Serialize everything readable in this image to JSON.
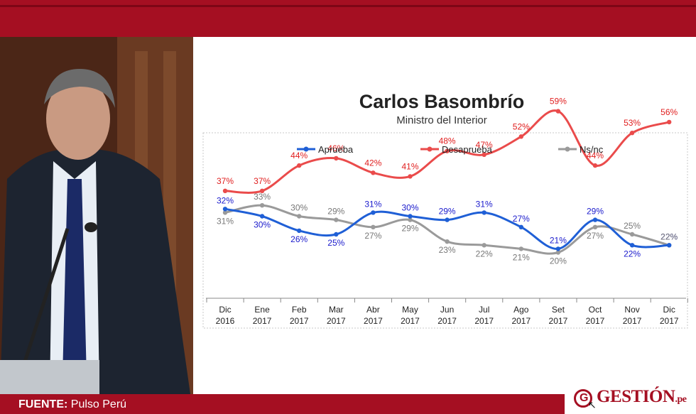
{
  "header": {
    "color": "#a50f22"
  },
  "photo": {
    "icon": "person-at-podium-photo"
  },
  "title": "Carlos  Basombrío",
  "subtitle": "Ministro del Interior",
  "footer": {
    "source_label": "FUENTE:",
    "source_value": "Pulso Perú"
  },
  "logo": {
    "text": "GESTIÓN",
    "tld": ".pe",
    "mark": "G"
  },
  "chart_data": {
    "type": "line",
    "categories": [
      "Dic 2016",
      "Ene 2017",
      "Feb 2017",
      "Mar 2017",
      "Abr 2017",
      "May 2017",
      "Jun 2017",
      "Jul 2017",
      "Ago 2017",
      "Set 2017",
      "Oct 2017",
      "Nov 2017",
      "Dic 2017"
    ],
    "category_lines": [
      [
        "Dic",
        "2016"
      ],
      [
        "Ene",
        "2017"
      ],
      [
        "Feb",
        "2017"
      ],
      [
        "Mar",
        "2017"
      ],
      [
        "Abr",
        "2017"
      ],
      [
        "May",
        "2017"
      ],
      [
        "Jun",
        "2017"
      ],
      [
        "Jul",
        "2017"
      ],
      [
        "Ago",
        "2017"
      ],
      [
        "Set",
        "2017"
      ],
      [
        "Oct",
        "2017"
      ],
      [
        "Nov",
        "2017"
      ],
      [
        "Dic",
        "2017"
      ]
    ],
    "series": [
      {
        "name": "Aprueba",
        "color": "#1f5fd6",
        "label_color": "#1a1acc",
        "values": [
          32,
          30,
          26,
          25,
          31,
          30,
          29,
          31,
          27,
          21,
          29,
          22,
          22
        ]
      },
      {
        "name": "Desaprueba",
        "color": "#ea4b4b",
        "label_color": "#e01e1e",
        "values": [
          37,
          37,
          44,
          46,
          42,
          41,
          48,
          47,
          52,
          59,
          44,
          53,
          56
        ]
      },
      {
        "name": "Ns/nc",
        "color": "#9a9a9a",
        "label_color": "#777777",
        "values": [
          31,
          33,
          30,
          29,
          27,
          29,
          23,
          22,
          21,
          20,
          27,
          25,
          22
        ]
      }
    ],
    "legend_position": "top",
    "grid": false,
    "value_suffix": "%"
  }
}
